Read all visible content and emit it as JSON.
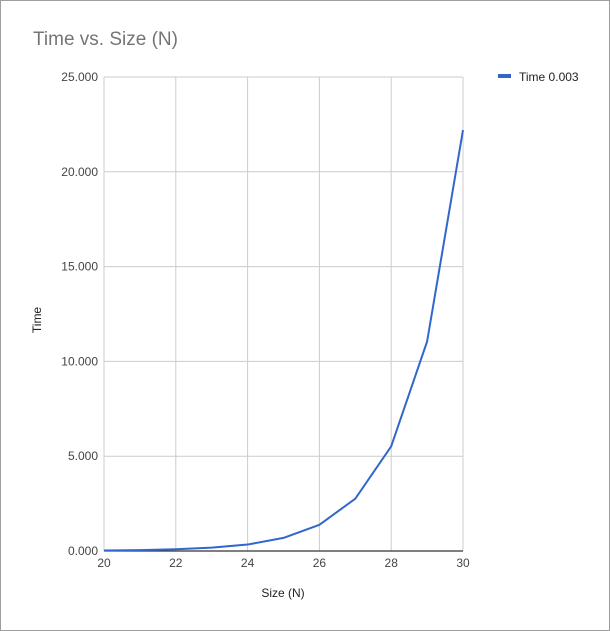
{
  "colors": {
    "series": "#3366cc",
    "grid": "#cccccc",
    "axis": "#333333"
  },
  "chart_data": {
    "type": "line",
    "title": "Time vs. Size (N)",
    "xlabel": "Size (N)",
    "ylabel": "Time",
    "xlim": [
      20,
      30
    ],
    "ylim": [
      0,
      25000
    ],
    "x_ticks": [
      20,
      22,
      24,
      26,
      28,
      30
    ],
    "x_tick_labels": [
      "20",
      "22",
      "24",
      "26",
      "28",
      "30"
    ],
    "y_ticks": [
      0,
      5000,
      10000,
      15000,
      20000,
      25000
    ],
    "y_tick_labels": [
      "0.000",
      "5.000",
      "10.000",
      "15.000",
      "20.000",
      "25.000"
    ],
    "x_gridlines": [
      20,
      22,
      24,
      26,
      28,
      30
    ],
    "grid": true,
    "legend_position": "top-right",
    "series": [
      {
        "name": "Time 0.003",
        "color": "#3366cc",
        "x": [
          20,
          21,
          22,
          23,
          24,
          25,
          26,
          27,
          28,
          29,
          30
        ],
        "y": [
          25,
          45,
          90,
          175,
          340,
          690,
          1380,
          2760,
          5520,
          11050,
          22200
        ]
      }
    ]
  }
}
